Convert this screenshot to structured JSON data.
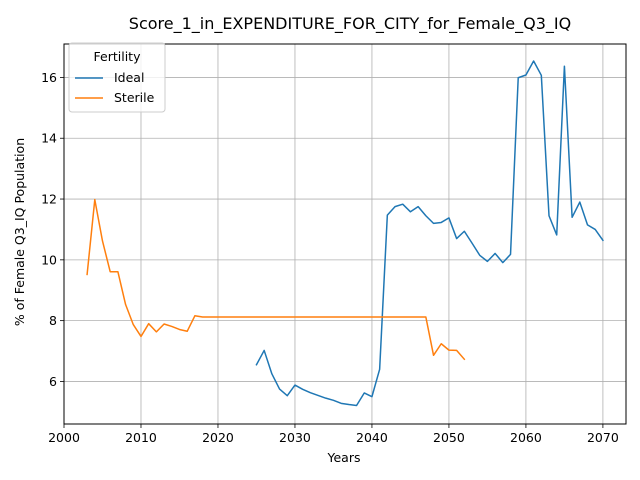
{
  "chart_data": {
    "type": "line",
    "title": "Score_1_in_EXPENDITURE_FOR_CITY_for_Female_Q3_IQ",
    "xlabel": "Years",
    "ylabel": "% of Female Q3_IQ Population",
    "xlim": [
      2000,
      2073
    ],
    "ylim": [
      4.6,
      17.1
    ],
    "xticks": [
      2000,
      2010,
      2020,
      2030,
      2040,
      2050,
      2060,
      2070
    ],
    "yticks": [
      6,
      8,
      10,
      12,
      14,
      16
    ],
    "grid": true,
    "legend": {
      "title": "Fertility",
      "position": "top-left"
    },
    "series": [
      {
        "name": "Ideal",
        "color": "#1f77b4",
        "x": [
          2025,
          2026,
          2027,
          2028,
          2029,
          2030,
          2031,
          2032,
          2033,
          2034,
          2035,
          2036,
          2037,
          2038,
          2039,
          2040,
          2041,
          2042,
          2043,
          2044,
          2045,
          2046,
          2047,
          2048,
          2049,
          2050,
          2051,
          2052,
          2053,
          2054,
          2055,
          2056,
          2057,
          2058,
          2059,
          2060,
          2061,
          2062,
          2063,
          2064,
          2065,
          2066,
          2067,
          2068,
          2069,
          2070
        ],
        "values": [
          6.55,
          7.02,
          6.25,
          5.75,
          5.53,
          5.88,
          5.74,
          5.63,
          5.54,
          5.45,
          5.38,
          5.28,
          5.24,
          5.21,
          5.62,
          5.5,
          6.4,
          11.47,
          11.75,
          11.83,
          11.58,
          11.75,
          11.45,
          11.2,
          11.23,
          11.38,
          10.7,
          10.94,
          10.55,
          10.15,
          9.95,
          10.21,
          9.91,
          10.18,
          15.99,
          16.08,
          16.54,
          16.07,
          11.45,
          10.82,
          16.37,
          11.4,
          11.9,
          11.15,
          11.0,
          10.64
        ]
      },
      {
        "name": "Sterile",
        "color": "#ff7f0e",
        "x": [
          2003,
          2004,
          2005,
          2006,
          2007,
          2008,
          2009,
          2010,
          2011,
          2012,
          2013,
          2014,
          2015,
          2016,
          2017,
          2018,
          2019,
          2020,
          2025,
          2030,
          2035,
          2040,
          2045,
          2047,
          2048,
          2049,
          2050,
          2051,
          2052
        ],
        "values": [
          9.52,
          11.98,
          10.62,
          9.61,
          9.61,
          8.53,
          7.87,
          7.48,
          7.9,
          7.63,
          7.89,
          7.81,
          7.71,
          7.65,
          8.16,
          8.12,
          8.12,
          8.12,
          8.12,
          8.12,
          8.12,
          8.12,
          8.12,
          8.12,
          6.86,
          7.24,
          7.03,
          7.02,
          6.73
        ]
      }
    ]
  }
}
